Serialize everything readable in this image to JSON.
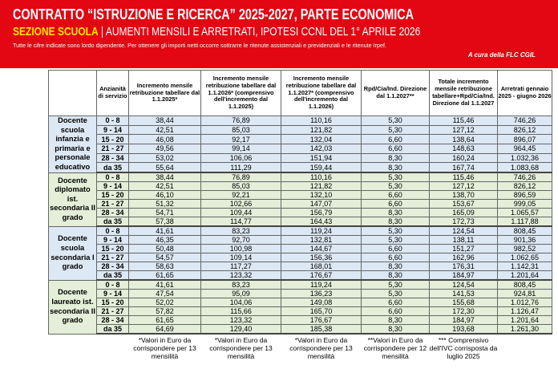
{
  "header": {
    "title": "CONTRATTO “ISTRUZIONE E RICERCA” 2025-2027, PARTE ECONOMICA",
    "section": "SEZIONE SCUOLA",
    "subtitle": "| AUMENTI MENSILI E ARRETRATI, IPOTESI CCNL DEL 1° APRILE 2026",
    "note": "Tutte le cifre indicate sono lordo dipendente. Per ottenere gli importi netti occorre sottrarre le ritenute assistenziali e previdenziali e le ritenute Irpef.",
    "credit": "A cura della FLC CGIL"
  },
  "table": {
    "columns": [
      "Anzianità di servizio",
      "Incremento mensile retribuzione tabellare dal 1.1.2025*",
      "Incremento mensile retribuzione tabellare dal 1.1.2026* (comprensivo dell'incremento dal 1.1.2025)",
      "Incremento mensile retribuzione tabellare dal 1.1.2027* (comprensivo dell'incremento dal 1.1.2026)",
      "Rpd/Cia/Ind. Direzione dal 1.1.2027**",
      "Totale incremento mensile retribuzione tabellare+Rpd/Cia/Ind. Direzione dal 1.1.2027",
      "Arretrati gennaio 2025 - giugno 2026"
    ],
    "groups": [
      {
        "label": "Docente scuola infanzia e primaria e personale educativo",
        "rows": [
          [
            "0 - 8",
            "38,44",
            "76,89",
            "110,16",
            "5,30",
            "115,46",
            "746,26"
          ],
          [
            "9 - 14",
            "42,51",
            "85,03",
            "121,82",
            "5,30",
            "127,12",
            "826,12"
          ],
          [
            "15 - 20",
            "46,08",
            "92,17",
            "132,04",
            "6,60",
            "138,64",
            "896,07"
          ],
          [
            "21 - 27",
            "49,56",
            "99,14",
            "142,03",
            "6,60",
            "148,63",
            "964,45"
          ],
          [
            "28 - 34",
            "53,02",
            "106,06",
            "151,94",
            "8,30",
            "160,24",
            "1.032,36"
          ],
          [
            "da 35",
            "55,64",
            "111,29",
            "159,44",
            "8,30",
            "167,74",
            "1.083,68"
          ]
        ]
      },
      {
        "label": "Docente diplomato ist. secondaria II grado",
        "rows": [
          [
            "0 - 8",
            "38,44",
            "76,89",
            "110,16",
            "5,30",
            "115,46",
            "746,26"
          ],
          [
            "9 - 14",
            "42,51",
            "85,03",
            "121,82",
            "5,30",
            "127,12",
            "826,12"
          ],
          [
            "15 - 20",
            "46,10",
            "92,21",
            "132,10",
            "6,60",
            "138,70",
            "896,59"
          ],
          [
            "21 - 27",
            "51,32",
            "102,66",
            "147,07",
            "6,60",
            "153,67",
            "999,05"
          ],
          [
            "28 - 34",
            "54,71",
            "109,44",
            "156,79",
            "8,30",
            "165,09",
            "1.065,57"
          ],
          [
            "da 35",
            "57,38",
            "114,77",
            "164,43",
            "8,30",
            "172,73",
            "1.117,88"
          ]
        ]
      },
      {
        "label": "Docente scuola secondaria I grado",
        "rows": [
          [
            "0 - 8",
            "41,61",
            "83,23",
            "119,24",
            "5,30",
            "124,54",
            "808,45"
          ],
          [
            "9 - 14",
            "46,35",
            "92,70",
            "132,81",
            "5,30",
            "138,11",
            "901,36"
          ],
          [
            "15 - 20",
            "50,48",
            "100,98",
            "144,67",
            "6,60",
            "151,27",
            "982,52"
          ],
          [
            "21 - 27",
            "54,57",
            "109,14",
            "156,36",
            "6,60",
            "162,96",
            "1.062,65"
          ],
          [
            "28 - 34",
            "58,63",
            "117,27",
            "168,01",
            "8,30",
            "176,31",
            "1.142,31"
          ],
          [
            "da 35",
            "61,65",
            "123,32",
            "176,67",
            "8,30",
            "184,97",
            "1.201,64"
          ]
        ]
      },
      {
        "label": "Docente laureato ist. secondaria II grado",
        "rows": [
          [
            "0 - 8",
            "41,61",
            "83,23",
            "119,24",
            "5,30",
            "124,54",
            "808,45"
          ],
          [
            "9 - 14",
            "47,54",
            "95,09",
            "136,23",
            "5,30",
            "141,53",
            "924,81"
          ],
          [
            "15 - 20",
            "52,02",
            "104,06",
            "149,08",
            "6,60",
            "155,68",
            "1.012,76"
          ],
          [
            "21 - 27",
            "57,82",
            "115,66",
            "165,70",
            "6,60",
            "172,30",
            "1.126,47"
          ],
          [
            "28 - 34",
            "61,65",
            "123,32",
            "176,67",
            "8,30",
            "184,97",
            "1.201,64"
          ],
          [
            "da 35",
            "64,69",
            "129,40",
            "185,38",
            "8,30",
            "193,68",
            "1.261,30"
          ]
        ]
      }
    ],
    "footnotes": [
      "*Valori in Euro da corrispondere per 13 mensilità",
      "*Valori in Euro da corrispondere per 13 mensilità",
      "*Valori in Euro da corrispondere per 13 mensilità",
      "**Valori in Euro da corrispondere per 12 mensilità",
      "*** Comprensivo dell'IVC corrisposta da luglio 2025"
    ]
  }
}
